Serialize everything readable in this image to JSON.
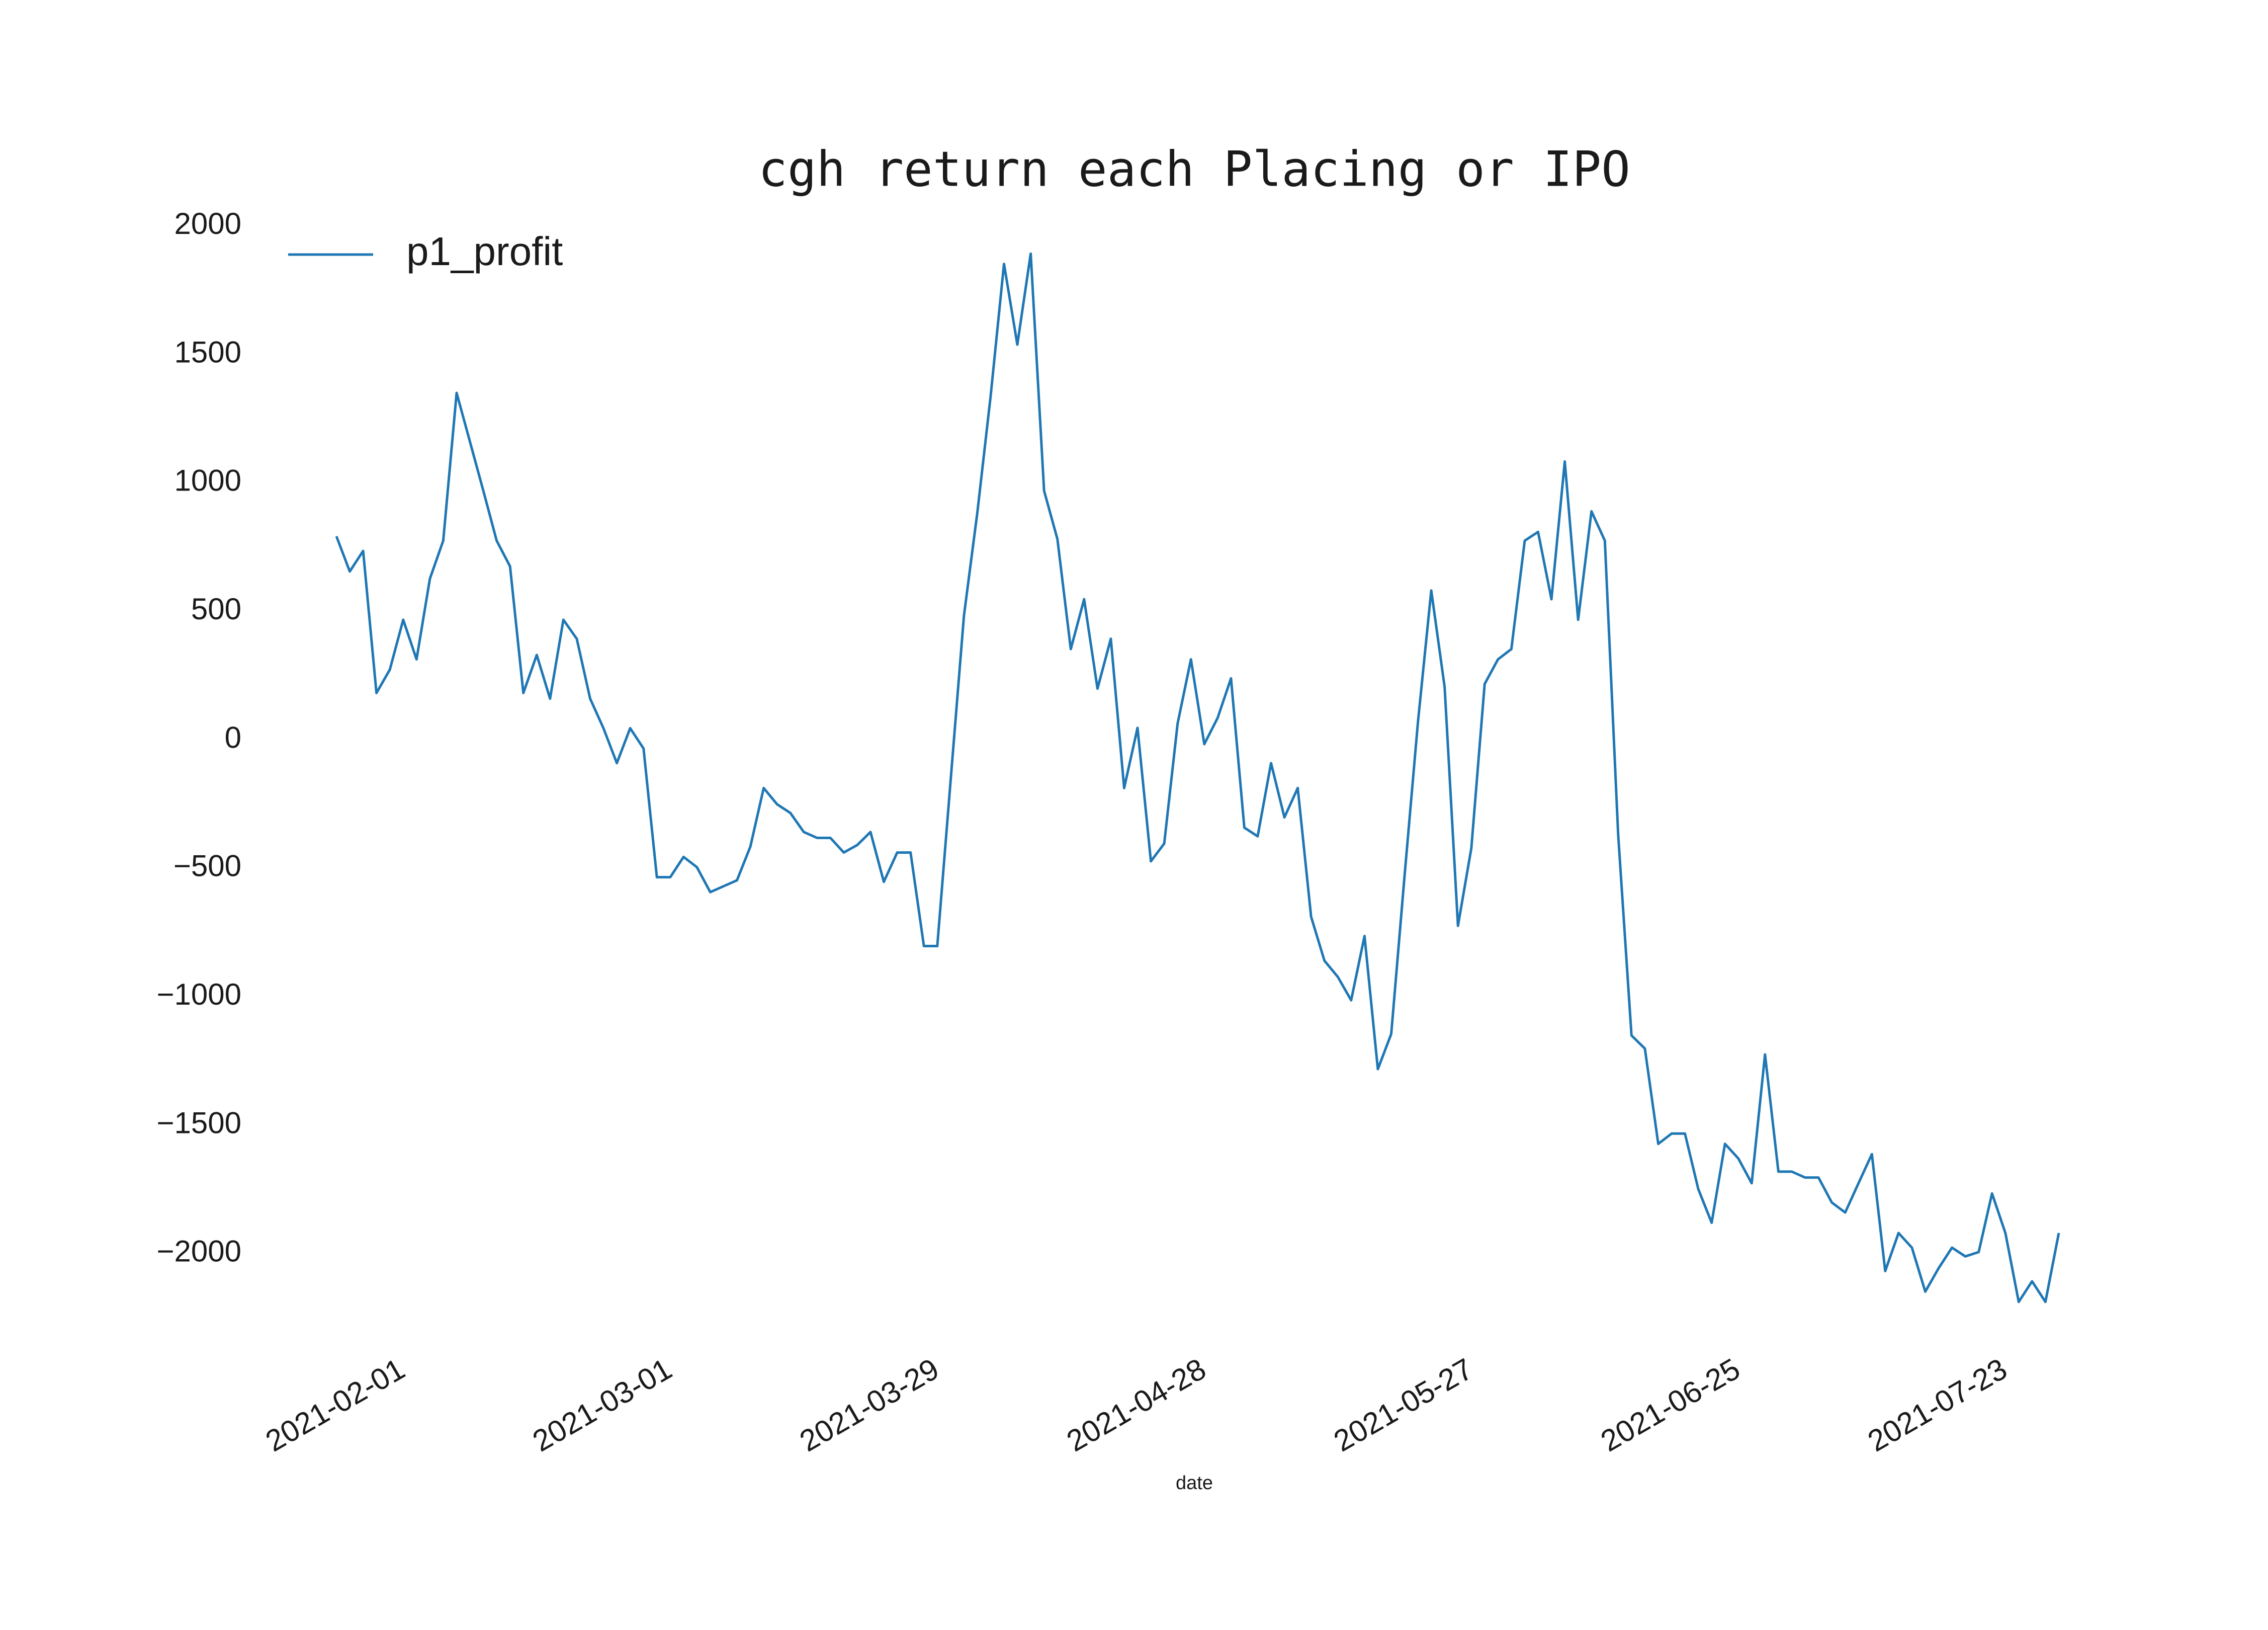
{
  "chart_data": {
    "type": "line",
    "title": "cgh return each Placing or IPO",
    "x_label": "date",
    "categories": [
      null,
      null,
      null,
      null,
      null,
      "2021-02-01",
      null,
      null,
      null,
      null,
      null,
      null,
      null,
      null,
      null,
      null,
      null,
      null,
      null,
      null,
      null,
      null,
      null,
      null,
      null,
      "2021-03-01",
      null,
      null,
      null,
      null,
      null,
      null,
      null,
      null,
      null,
      null,
      null,
      null,
      null,
      null,
      null,
      null,
      null,
      null,
      null,
      "2021-03-29",
      null,
      null,
      null,
      null,
      null,
      null,
      null,
      null,
      null,
      null,
      null,
      null,
      null,
      null,
      null,
      null,
      null,
      null,
      null,
      "2021-04-28",
      null,
      null,
      null,
      null,
      null,
      null,
      null,
      null,
      null,
      null,
      null,
      null,
      null,
      null,
      null,
      null,
      null,
      null,
      null,
      "2021-05-27",
      null,
      null,
      null,
      null,
      null,
      null,
      null,
      null,
      null,
      null,
      null,
      null,
      null,
      null,
      null,
      null,
      null,
      null,
      null,
      "2021-06-25",
      null,
      null,
      null,
      null,
      null,
      null,
      null,
      null,
      null,
      null,
      null,
      null,
      null,
      null,
      null,
      null,
      null,
      null,
      null,
      "2021-07-23",
      null,
      null,
      null,
      null
    ],
    "series": [
      {
        "name": "p1_profit",
        "color": "#1f77b4",
        "values": [
          792,
          655,
          735,
          182,
          273,
          467,
          313,
          627,
          775,
          1350,
          1160,
          970,
          775,
          675,
          182,
          330,
          160,
          467,
          393,
          160,
          45,
          -91,
          45,
          -34,
          -535,
          -535,
          -456,
          -496,
          -593,
          -570,
          -547,
          -416,
          -188,
          -251,
          -285,
          -359,
          -382,
          -382,
          -439,
          -410,
          -359,
          -553,
          -439,
          -439,
          -803,
          -803,
          -160,
          484,
          883,
          1339,
          1852,
          1538,
          1892,
          969,
          781,
          353,
          547,
          199,
          393,
          -188,
          46,
          -473,
          -404,
          63,
          313,
          -17,
          85,
          239,
          -342,
          -376,
          -91,
          -302,
          -188,
          -689,
          -860,
          -923,
          -1014,
          -764,
          -1282,
          -1145,
          -530,
          68,
          581,
          205,
          -724,
          -422,
          217,
          313,
          353,
          775,
          809,
          547,
          1083,
          467,
          889,
          775,
          -370,
          -1151,
          -1202,
          -1573,
          -1533,
          -1533,
          -1749,
          -1880,
          -1573,
          -1630,
          -1726,
          -1225,
          -1681,
          -1681,
          -1704,
          -1704,
          -1801,
          -1840,
          -1726,
          -1613,
          -2068,
          -1920,
          -1977,
          -2148,
          -2057,
          -1977,
          -2011,
          -1994,
          -1766,
          -1920,
          -2188,
          -2108,
          -2188,
          -1920
        ]
      }
    ],
    "ylim": [
      -2300,
      2100
    ],
    "yticks": [
      {
        "value": -2000,
        "label": "−2000"
      },
      {
        "value": -1500,
        "label": "−1500"
      },
      {
        "value": -1000,
        "label": "−1000"
      },
      {
        "value": -500,
        "label": "−500"
      },
      0,
      500,
      1000,
      1500,
      2000
    ],
    "grid": false,
    "legend": "upper left"
  }
}
